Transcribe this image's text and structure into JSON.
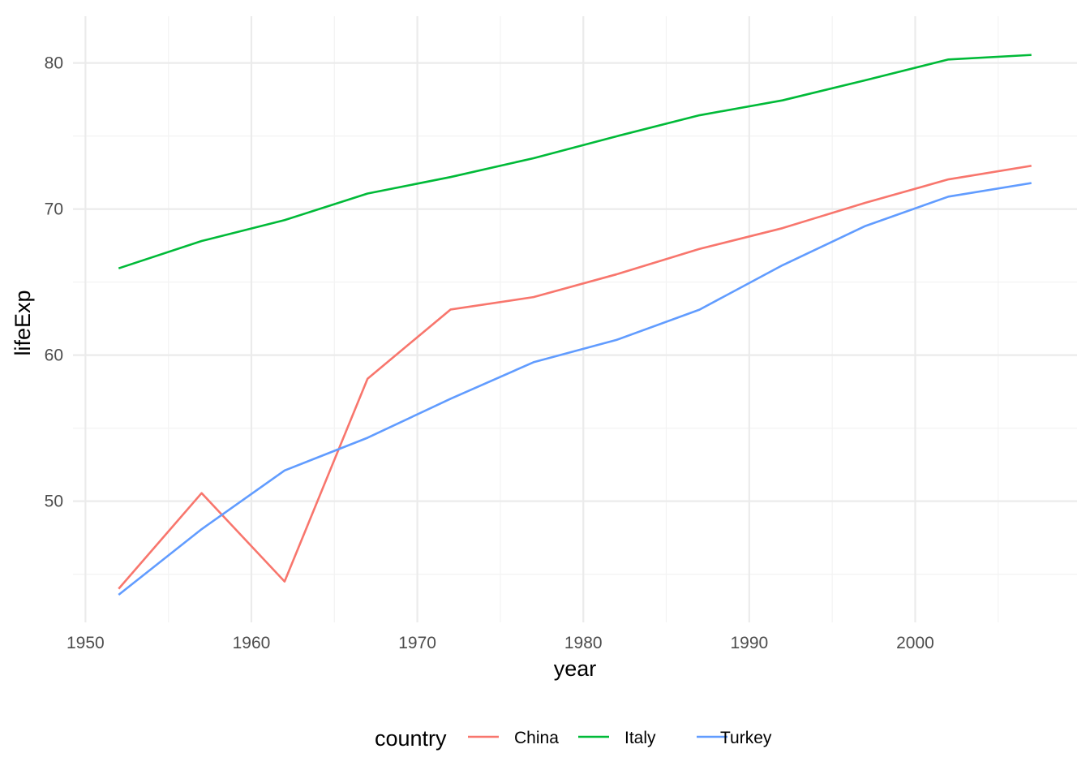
{
  "chart_data": {
    "type": "line",
    "xlabel": "year",
    "ylabel": "lifeExp",
    "xlim": [
      1949.25,
      2009.75
    ],
    "ylim": [
      41.7,
      83.2
    ],
    "x_ticks": [
      1950,
      1960,
      1970,
      1980,
      1990,
      2000
    ],
    "x_tick_labels": [
      "1950",
      "1960",
      "1970",
      "1980",
      "1990",
      "2000"
    ],
    "x_minor_ticks": [
      1955,
      1965,
      1975,
      1985,
      1995,
      2005
    ],
    "y_ticks": [
      50,
      60,
      70,
      80
    ],
    "y_tick_labels": [
      "50",
      "60",
      "70",
      "80"
    ],
    "y_minor_ticks": [
      45,
      55,
      65,
      75
    ],
    "grid": true,
    "legend": {
      "title": "country",
      "position": "bottom"
    },
    "x": [
      1952,
      1957,
      1962,
      1967,
      1972,
      1977,
      1982,
      1987,
      1992,
      1997,
      2002,
      2007
    ],
    "series": [
      {
        "name": "China",
        "color": "#F8766D",
        "values": [
          44.0,
          50.55,
          44.5,
          58.38,
          63.12,
          63.97,
          65.53,
          67.27,
          68.69,
          70.43,
          72.03,
          72.96
        ]
      },
      {
        "name": "Italy",
        "color": "#00BA38",
        "values": [
          65.94,
          67.81,
          69.24,
          71.06,
          72.19,
          73.48,
          74.98,
          76.42,
          77.44,
          78.82,
          80.24,
          80.55
        ]
      },
      {
        "name": "Turkey",
        "color": "#619CFF",
        "values": [
          43.59,
          48.08,
          52.1,
          54.34,
          57.01,
          59.51,
          61.04,
          63.11,
          66.15,
          68.84,
          70.85,
          71.78
        ]
      }
    ]
  }
}
